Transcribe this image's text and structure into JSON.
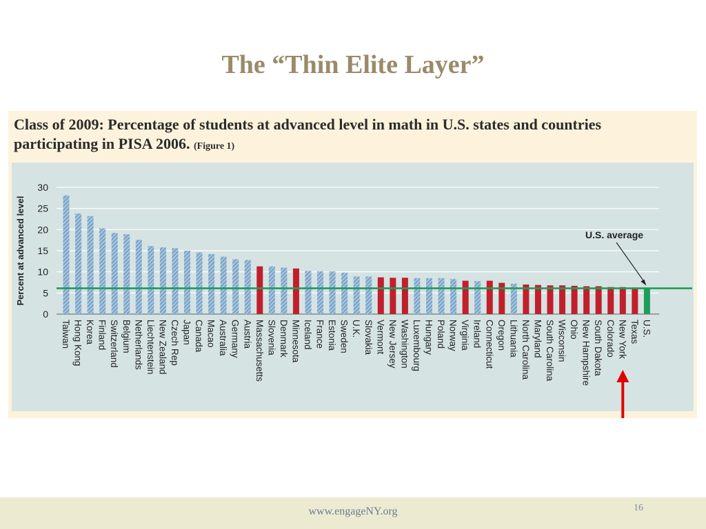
{
  "slide": {
    "title": "The “Thin Elite Layer”",
    "footer_url": "www.engageNY.org",
    "page_number": "16"
  },
  "figure": {
    "title": "Class of 2009: Percentage of students at advanced level in math in U.S. states and countries participating in PISA 2006.",
    "tag": "(Figure 1)"
  },
  "chart_data": {
    "type": "bar",
    "ylabel": "Percent at advanced level",
    "ylim": [
      0,
      30
    ],
    "yticks": [
      0,
      5,
      10,
      15,
      20,
      25,
      30
    ],
    "grid": true,
    "reference_line": {
      "label": "U.S. average",
      "value": 6.1
    },
    "highlight_arrow_target": "New York",
    "colors": {
      "country": "#7fa8cc",
      "state": "#c0202b",
      "us": "#1e9c5a",
      "reference": "#1e9c5a",
      "arrow": "#e00000"
    },
    "categories": [
      "Taiwan",
      "Hong Kong",
      "Korea",
      "Finland",
      "Switzerland",
      "Belgium",
      "Netherlands",
      "Liechtenstein",
      "New Zealand",
      "Czech Rep",
      "Japan",
      "Canada",
      "Macao",
      "Australia",
      "Germany",
      "Austria",
      "Massachusetts",
      "Slovenia",
      "Denmark",
      "Minnesota",
      "Iceland",
      "France",
      "Estonia",
      "Sweden",
      "U.K.",
      "Slovakia",
      "Vermont",
      "New Jersey",
      "Washington",
      "Luxembourg",
      "Hungary",
      "Poland",
      "Norway",
      "Virginia",
      "Ireland",
      "Connecticut",
      "Oregon",
      "Lithuania",
      "North Carolina",
      "Maryland",
      "South Carolina",
      "Wisconsin",
      "Ohio",
      "New Hampshire",
      "South Dakota",
      "Colorado",
      "New York",
      "Texas",
      "U.S."
    ],
    "values": [
      28.1,
      23.8,
      23.2,
      20.3,
      19.2,
      18.9,
      17.6,
      16.1,
      15.8,
      15.6,
      15.0,
      14.6,
      14.2,
      13.6,
      13.0,
      12.8,
      11.3,
      11.3,
      11.0,
      10.8,
      10.2,
      10.1,
      10.1,
      9.8,
      8.9,
      8.9,
      8.7,
      8.6,
      8.6,
      8.5,
      8.5,
      8.5,
      8.3,
      7.9,
      7.8,
      7.9,
      7.4,
      7.2,
      7.0,
      6.9,
      6.8,
      6.8,
      6.7,
      6.6,
      6.6,
      6.4,
      6.4,
      6.3,
      6.1
    ],
    "kinds": [
      "country",
      "country",
      "country",
      "country",
      "country",
      "country",
      "country",
      "country",
      "country",
      "country",
      "country",
      "country",
      "country",
      "country",
      "country",
      "country",
      "state",
      "country",
      "country",
      "state",
      "country",
      "country",
      "country",
      "country",
      "country",
      "country",
      "state",
      "state",
      "state",
      "country",
      "country",
      "country",
      "country",
      "state",
      "country",
      "state",
      "state",
      "country",
      "state",
      "state",
      "state",
      "state",
      "state",
      "state",
      "state",
      "state",
      "state",
      "state",
      "us"
    ]
  }
}
